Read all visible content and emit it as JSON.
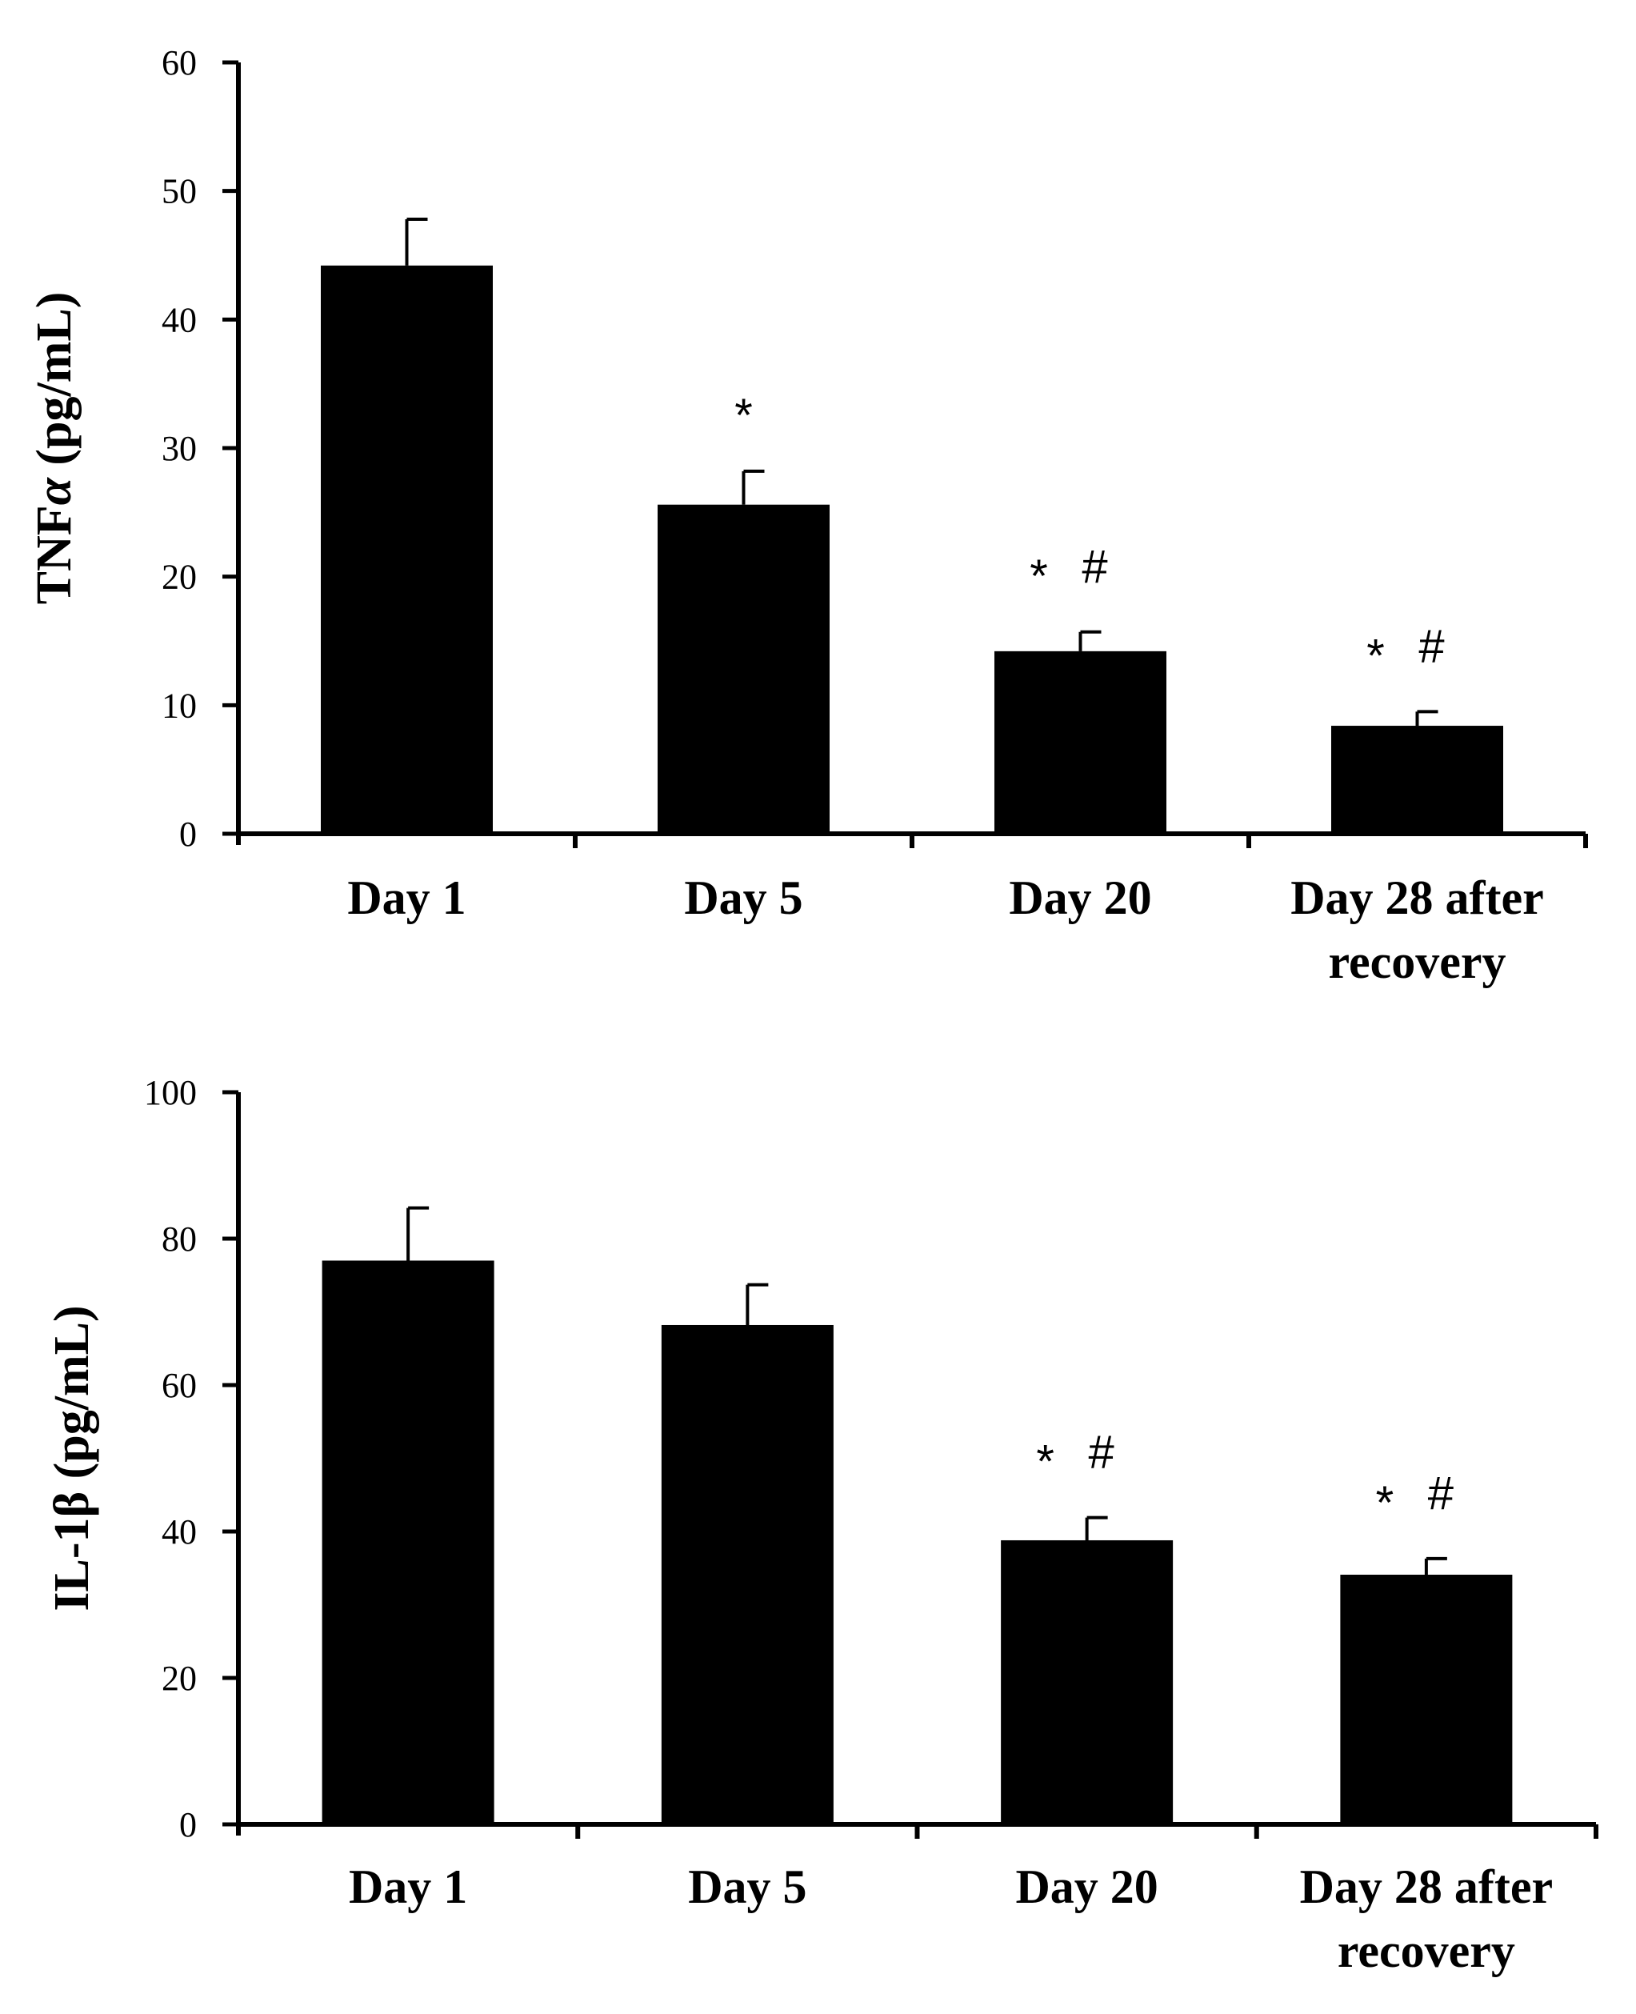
{
  "chart_data": [
    {
      "type": "bar",
      "categories": [
        "Day 1",
        "Day 5",
        "Day 20",
        [
          "Day 28 after",
          "recovery"
        ]
      ],
      "values": [
        44.2,
        25.6,
        14.2,
        8.4
      ],
      "errors": [
        3.6,
        2.6,
        1.5,
        1.1
      ],
      "significance": [
        "",
        "*",
        "* #",
        "* #"
      ],
      "ylabel_main": "TNF",
      "ylabel_greek": "α",
      "ylabel_unit": " (pg/mL)",
      "ylim": [
        0,
        60
      ],
      "yticks": [
        0,
        10,
        20,
        30,
        40,
        50,
        60
      ],
      "bar_color": "#000000"
    },
    {
      "type": "bar",
      "categories": [
        "Day 1",
        "Day 5",
        "Day 20",
        [
          "Day 28 after",
          "recovery"
        ]
      ],
      "values": [
        77.0,
        68.2,
        38.8,
        34.1
      ],
      "errors": [
        7.2,
        5.5,
        3.1,
        2.2
      ],
      "significance": [
        "",
        "",
        "* #",
        "* #"
      ],
      "ylabel_main": "IL-1β",
      "ylabel_greek": "",
      "ylabel_unit": " (pg/mL)",
      "ylim": [
        0,
        100
      ],
      "yticks": [
        0,
        20,
        40,
        60,
        80,
        100
      ],
      "bar_color": "#000000"
    }
  ]
}
